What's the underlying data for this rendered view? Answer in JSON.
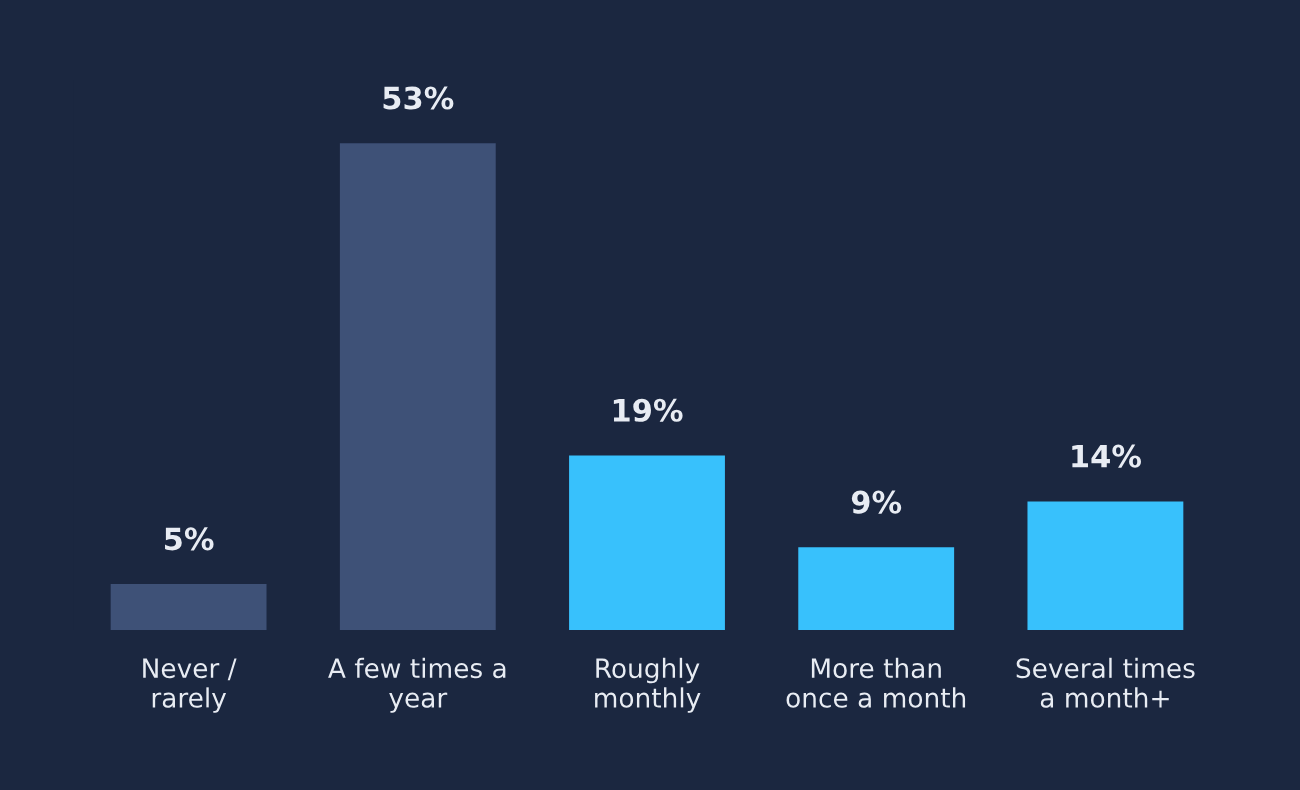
{
  "chart_data": {
    "type": "bar",
    "categories": [
      "Never /\nrarely",
      "A few times a\nyear",
      "Roughly\nmonthly",
      "More than\nonce a month",
      "Several times\na month+"
    ],
    "values": [
      5,
      53,
      19,
      9,
      14
    ],
    "colors": [
      "#3e5177",
      "#3e5177",
      "#38c1fc",
      "#38c1fc",
      "#38c1fc"
    ],
    "value_labels": [
      "5%",
      "53%",
      "19%",
      "9%",
      "14%"
    ],
    "grid": false,
    "legend": false
  }
}
